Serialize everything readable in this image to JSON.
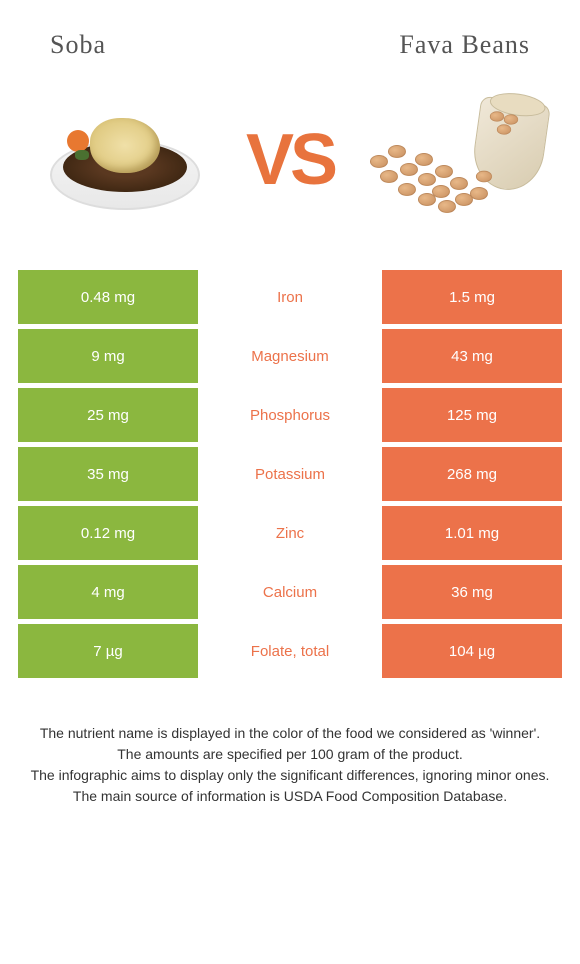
{
  "left_food": "Soba",
  "right_food": "Fava beans",
  "vs_label": "VS",
  "colors": {
    "left": "#8bb73f",
    "right": "#ec724a",
    "winner_text_left": "#8bb73f",
    "winner_text_right": "#ec724a"
  },
  "rows": [
    {
      "left": "0.48 mg",
      "mid": "Iron",
      "right": "1.5 mg",
      "winner": "right"
    },
    {
      "left": "9 mg",
      "mid": "Magnesium",
      "right": "43 mg",
      "winner": "right"
    },
    {
      "left": "25 mg",
      "mid": "Phosphorus",
      "right": "125 mg",
      "winner": "right"
    },
    {
      "left": "35 mg",
      "mid": "Potassium",
      "right": "268 mg",
      "winner": "right"
    },
    {
      "left": "0.12 mg",
      "mid": "Zinc",
      "right": "1.01 mg",
      "winner": "right"
    },
    {
      "left": "4 mg",
      "mid": "Calcium",
      "right": "36 mg",
      "winner": "right"
    },
    {
      "left": "7 µg",
      "mid": "Folate, total",
      "right": "104 µg",
      "winner": "right"
    }
  ],
  "footer_lines": [
    "The nutrient name is displayed in the color of the food we considered as 'winner'.",
    "The amounts are specified per 100 gram of the product.",
    "The infographic aims to display only the significant differences, ignoring minor ones.",
    "The main source of information is USDA Food Composition Database."
  ]
}
